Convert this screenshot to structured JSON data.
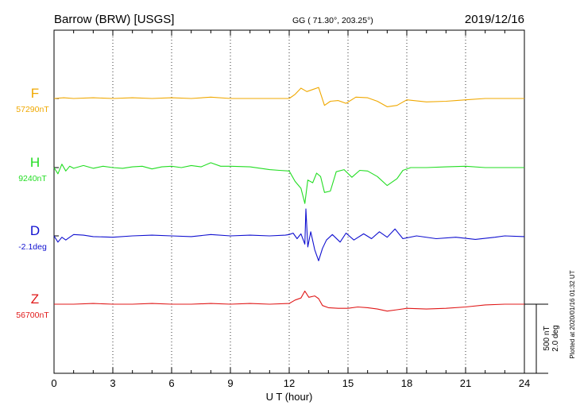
{
  "header": {
    "station": "Barrow (BRW)  [USGS]",
    "coords": "GG ( 71.30°, 203.25°)",
    "date": "2019/12/16"
  },
  "side_note": "Plotted at 2020/01/16 01:32 UT",
  "scale_labels": [
    "500 nT",
    "2.0 deg"
  ],
  "chart_data": {
    "type": "line",
    "xlabel": "U T (hour)",
    "xlim": [
      0,
      24
    ],
    "xticks": [
      "0",
      "3",
      "6",
      "9",
      "12",
      "15",
      "18",
      "21",
      "24"
    ],
    "grid": true,
    "series": [
      {
        "name": "F",
        "base_label": "57290nT",
        "color": "#f0a800",
        "points": [
          [
            0,
            0
          ],
          [
            0.5,
            5
          ],
          [
            1,
            0
          ],
          [
            2,
            5
          ],
          [
            3,
            0
          ],
          [
            4,
            5
          ],
          [
            5,
            0
          ],
          [
            6,
            5
          ],
          [
            7,
            0
          ],
          [
            8,
            10
          ],
          [
            9,
            0
          ],
          [
            10,
            0
          ],
          [
            11,
            0
          ],
          [
            12,
            0
          ],
          [
            12.3,
            30
          ],
          [
            12.6,
            75
          ],
          [
            12.9,
            50
          ],
          [
            13.2,
            65
          ],
          [
            13.5,
            80
          ],
          [
            13.8,
            -50
          ],
          [
            14.1,
            -20
          ],
          [
            14.5,
            -15
          ],
          [
            14.9,
            -35
          ],
          [
            15.4,
            10
          ],
          [
            16,
            5
          ],
          [
            16.5,
            -20
          ],
          [
            17,
            -60
          ],
          [
            17.5,
            -50
          ],
          [
            18,
            -10
          ],
          [
            19,
            -25
          ],
          [
            20,
            -20
          ],
          [
            21,
            -10
          ],
          [
            22,
            0
          ],
          [
            23,
            0
          ],
          [
            24,
            0
          ]
        ]
      },
      {
        "name": "H",
        "base_label": "9240nT",
        "color": "#22dd22",
        "points": [
          [
            0,
            0
          ],
          [
            0.2,
            -45
          ],
          [
            0.4,
            25
          ],
          [
            0.6,
            -25
          ],
          [
            0.8,
            10
          ],
          [
            1,
            -5
          ],
          [
            1.5,
            15
          ],
          [
            2,
            -5
          ],
          [
            2.5,
            10
          ],
          [
            3,
            0
          ],
          [
            3.5,
            -5
          ],
          [
            4,
            5
          ],
          [
            4.5,
            10
          ],
          [
            5,
            -10
          ],
          [
            5.5,
            5
          ],
          [
            6,
            10
          ],
          [
            6.5,
            0
          ],
          [
            7,
            15
          ],
          [
            7.5,
            5
          ],
          [
            8,
            35
          ],
          [
            8.5,
            10
          ],
          [
            9,
            10
          ],
          [
            10,
            5
          ],
          [
            11,
            -15
          ],
          [
            11.5,
            -20
          ],
          [
            12,
            -25
          ],
          [
            12.3,
            -100
          ],
          [
            12.6,
            -150
          ],
          [
            12.8,
            -260
          ],
          [
            12.95,
            -90
          ],
          [
            13.2,
            -110
          ],
          [
            13.4,
            -40
          ],
          [
            13.6,
            -65
          ],
          [
            13.8,
            -180
          ],
          [
            14.1,
            -170
          ],
          [
            14.4,
            -30
          ],
          [
            14.8,
            -15
          ],
          [
            15.2,
            -70
          ],
          [
            15.6,
            -20
          ],
          [
            16,
            -25
          ],
          [
            16.5,
            -65
          ],
          [
            17,
            -130
          ],
          [
            17.5,
            -80
          ],
          [
            17.8,
            -20
          ],
          [
            18.2,
            0
          ],
          [
            19,
            0
          ],
          [
            20,
            5
          ],
          [
            21,
            10
          ],
          [
            22,
            0
          ],
          [
            23,
            0
          ],
          [
            24,
            0
          ]
        ]
      },
      {
        "name": "D",
        "base_label": "-2.1deg",
        "color": "#1010d0",
        "points": [
          [
            0,
            0
          ],
          [
            0.2,
            -45
          ],
          [
            0.4,
            -10
          ],
          [
            0.6,
            -30
          ],
          [
            0.8,
            -10
          ],
          [
            1,
            10
          ],
          [
            1.5,
            5
          ],
          [
            2,
            -5
          ],
          [
            3,
            -10
          ],
          [
            4,
            0
          ],
          [
            5,
            5
          ],
          [
            6,
            0
          ],
          [
            7,
            -5
          ],
          [
            8,
            10
          ],
          [
            9,
            0
          ],
          [
            10,
            5
          ],
          [
            11,
            0
          ],
          [
            11.8,
            5
          ],
          [
            12,
            10
          ],
          [
            12.2,
            20
          ],
          [
            12.4,
            -20
          ],
          [
            12.6,
            15
          ],
          [
            12.8,
            -60
          ],
          [
            12.85,
            195
          ],
          [
            12.95,
            -80
          ],
          [
            13.1,
            30
          ],
          [
            13.3,
            -100
          ],
          [
            13.5,
            -180
          ],
          [
            13.7,
            -90
          ],
          [
            13.9,
            -30
          ],
          [
            14.2,
            10
          ],
          [
            14.6,
            -45
          ],
          [
            14.9,
            20
          ],
          [
            15.3,
            -30
          ],
          [
            15.8,
            15
          ],
          [
            16.2,
            -20
          ],
          [
            16.6,
            30
          ],
          [
            17,
            -10
          ],
          [
            17.4,
            50
          ],
          [
            17.8,
            -20
          ],
          [
            18.5,
            0
          ],
          [
            19.5,
            -20
          ],
          [
            20.5,
            -10
          ],
          [
            21.5,
            -25
          ],
          [
            22.5,
            -10
          ],
          [
            23,
            0
          ],
          [
            24,
            -5
          ]
        ]
      },
      {
        "name": "Z",
        "base_label": "56700nT",
        "color": "#e01818",
        "points": [
          [
            0,
            0
          ],
          [
            1,
            0
          ],
          [
            2,
            5
          ],
          [
            3,
            0
          ],
          [
            4,
            0
          ],
          [
            5,
            5
          ],
          [
            6,
            0
          ],
          [
            7,
            0
          ],
          [
            8,
            5
          ],
          [
            9,
            0
          ],
          [
            10,
            5
          ],
          [
            11,
            0
          ],
          [
            12,
            5
          ],
          [
            12.3,
            30
          ],
          [
            12.6,
            45
          ],
          [
            12.8,
            95
          ],
          [
            13.0,
            50
          ],
          [
            13.3,
            60
          ],
          [
            13.5,
            40
          ],
          [
            13.7,
            -10
          ],
          [
            14,
            -25
          ],
          [
            14.5,
            -30
          ],
          [
            15,
            -30
          ],
          [
            15.5,
            -20
          ],
          [
            16,
            -25
          ],
          [
            16.5,
            -35
          ],
          [
            17,
            -50
          ],
          [
            17.5,
            -40
          ],
          [
            18,
            -30
          ],
          [
            19,
            -35
          ],
          [
            20,
            -30
          ],
          [
            21,
            -20
          ],
          [
            22,
            -5
          ],
          [
            23,
            0
          ],
          [
            24,
            0
          ]
        ]
      }
    ]
  }
}
